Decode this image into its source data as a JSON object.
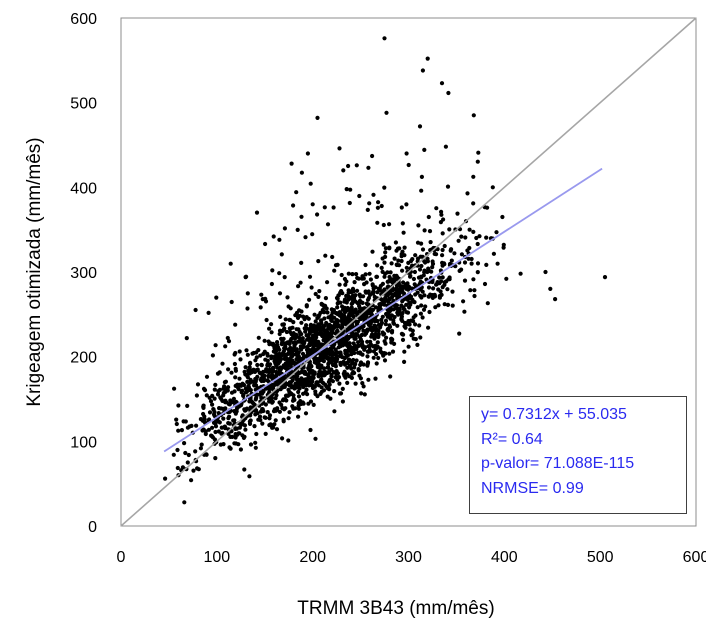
{
  "chart_data": {
    "type": "scatter",
    "xlabel": "TRMM 3B43 (mm/mês)",
    "ylabel": "Krigeagem otimizada (mm/mês)",
    "xlim": [
      0,
      600
    ],
    "ylim": [
      0,
      600
    ],
    "x_ticks": [
      "0",
      "100",
      "200",
      "300",
      "400",
      "500",
      "600"
    ],
    "y_ticks": [
      "0",
      "100",
      "200",
      "300",
      "400",
      "500",
      "600"
    ],
    "grid": false,
    "reference_line": {
      "name": "1:1",
      "from": [
        0,
        0
      ],
      "to": [
        600,
        600
      ],
      "color": "#a6a6a6"
    },
    "regression_line": {
      "slope": 0.7312,
      "intercept": 55.035,
      "x_range": [
        45,
        502
      ],
      "color": "#9999ee"
    },
    "point_color": "#000000",
    "approx_point_count": 2200,
    "cluster": {
      "mean_x": 215,
      "sd_x": 70,
      "residual_sd": 28
    },
    "notable_points": [
      {
        "x": 275,
        "y": 576
      },
      {
        "x": 320,
        "y": 552
      },
      {
        "x": 315,
        "y": 538
      },
      {
        "x": 335,
        "y": 523
      },
      {
        "x": 277,
        "y": 488
      },
      {
        "x": 205,
        "y": 482
      },
      {
        "x": 228,
        "y": 446
      },
      {
        "x": 195,
        "y": 440
      },
      {
        "x": 312,
        "y": 472
      },
      {
        "x": 339,
        "y": 448
      },
      {
        "x": 178,
        "y": 428
      },
      {
        "x": 246,
        "y": 426
      },
      {
        "x": 262,
        "y": 437
      },
      {
        "x": 298,
        "y": 440
      },
      {
        "x": 232,
        "y": 420
      },
      {
        "x": 505,
        "y": 294
      },
      {
        "x": 453,
        "y": 268
      },
      {
        "x": 443,
        "y": 300
      },
      {
        "x": 417,
        "y": 298
      },
      {
        "x": 448,
        "y": 280
      },
      {
        "x": 402,
        "y": 292
      },
      {
        "x": 66,
        "y": 28
      },
      {
        "x": 46,
        "y": 56
      },
      {
        "x": 203,
        "y": 103
      },
      {
        "x": 60,
        "y": 60
      },
      {
        "x": 388,
        "y": 400
      },
      {
        "x": 382,
        "y": 376
      },
      {
        "x": 200,
        "y": 380
      },
      {
        "x": 360,
        "y": 360
      }
    ]
  },
  "stats_box": {
    "equation": "y= 0.7312x + 55.035",
    "r2": "R²= 0.64",
    "p_value": "p-valor= 71.088E-115",
    "nrmse": "NRMSE= 0.99"
  }
}
